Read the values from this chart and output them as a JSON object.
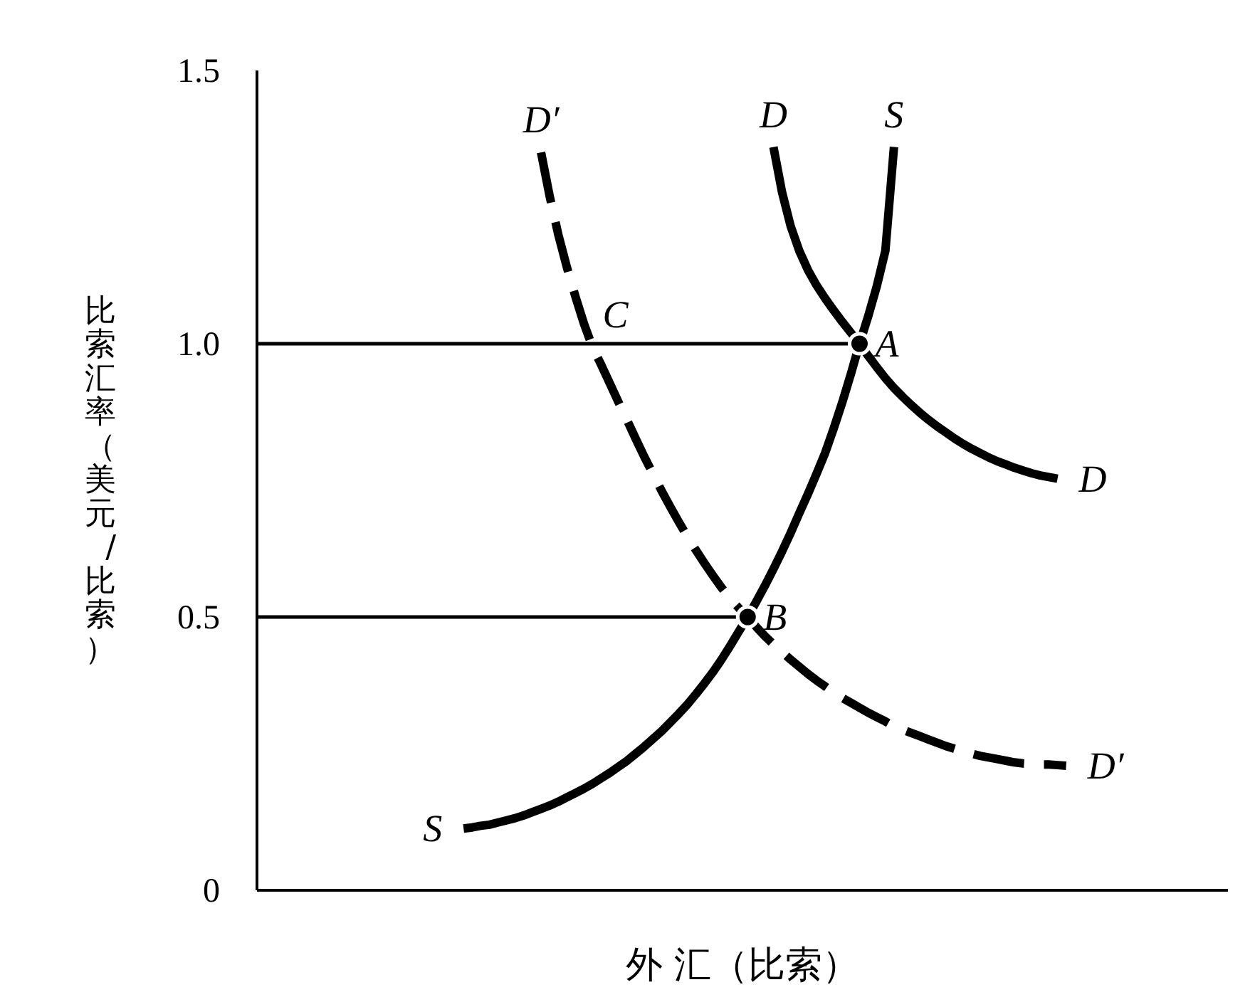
{
  "chart_data": {
    "type": "line",
    "xlabel": "外 汇（比索）",
    "ylabel": "比索汇率（美元/比索）",
    "tick_labels": "y",
    "ylim": [
      0,
      1.5
    ],
    "yticks": [
      0,
      0.5,
      {
        "value": 1,
        "label": "1.0"
      },
      1.5
    ],
    "categories": [
      null,
      null,
      null,
      null,
      null,
      null,
      null,
      null,
      null,
      null,
      null,
      null,
      null,
      null,
      null,
      null,
      null,
      null,
      null,
      null,
      null,
      null,
      null,
      null,
      null,
      null,
      null,
      null,
      null,
      null,
      null,
      null,
      null,
      null,
      null,
      null,
      null,
      null,
      null,
      null,
      null,
      null,
      null,
      null,
      null,
      null,
      null,
      null,
      null,
      null,
      null,
      null,
      null,
      null,
      null,
      null,
      null,
      null,
      null,
      null,
      null,
      null,
      null,
      null,
      null,
      null,
      null,
      null,
      null,
      null,
      null,
      null,
      null,
      null,
      null,
      null,
      null,
      null,
      null,
      null,
      null,
      null,
      null,
      null,
      null,
      null,
      null,
      null,
      null,
      null,
      null,
      null,
      null,
      null,
      null
    ],
    "series": [
      {
        "color": "#000000",
        "values": [
          1,
          1,
          1,
          1,
          1,
          1,
          1,
          1,
          1,
          1,
          1,
          1,
          1,
          1,
          1,
          1,
          1,
          1,
          1,
          1,
          1,
          1,
          1,
          1,
          1,
          1,
          1,
          1,
          1,
          1,
          1,
          1,
          1,
          1,
          1,
          1,
          1,
          1,
          1,
          1,
          1,
          1,
          1,
          1,
          1,
          1,
          1,
          1,
          1,
          1,
          1,
          1,
          1,
          1,
          1,
          1,
          1,
          1,
          1,
          1,
          1,
          1,
          1,
          1,
          1,
          1,
          1,
          1,
          1,
          1,
          1,
          null,
          null,
          null,
          null,
          null,
          null,
          null,
          null,
          null,
          null,
          null,
          null,
          null,
          null,
          null,
          null,
          null,
          null,
          null,
          null,
          null,
          null,
          null,
          null
        ]
      },
      {
        "color": "#000000",
        "values": [
          0.5,
          0.5,
          0.5,
          0.5,
          0.5,
          0.5,
          0.5,
          0.5,
          0.5,
          0.5,
          0.5,
          0.5,
          0.5,
          0.5,
          0.5,
          0.5,
          0.5,
          0.5,
          0.5,
          0.5,
          0.5,
          0.5,
          0.5,
          0.5,
          0.5,
          0.5,
          0.5,
          0.5,
          0.5,
          0.5,
          0.5,
          0.5,
          0.5,
          0.5,
          0.5,
          0.5,
          0.5,
          0.5,
          0.5,
          0.5,
          0.5,
          0.5,
          0.5,
          0.5,
          0.5,
          0.5,
          0.5,
          0.5,
          0.5,
          0.5,
          0.5,
          0.5,
          0.5,
          0.5,
          0.5,
          0.5,
          0.5,
          0.5,
          null,
          null,
          null,
          null,
          null,
          null,
          null,
          null,
          null,
          null,
          null,
          null,
          null,
          null,
          null,
          null,
          null,
          null,
          null,
          null,
          null,
          null,
          null,
          null,
          null,
          null,
          null,
          null,
          null,
          null,
          null,
          null,
          null,
          null,
          null,
          null,
          null
        ]
      },
      {
        "name": "S",
        "color": "#000000",
        "line_style": "solid",
        "values": [
          null,
          null,
          null,
          null,
          null,
          null,
          null,
          null,
          null,
          null,
          null,
          null,
          null,
          null,
          null,
          null,
          null,
          null,
          null,
          null,
          null,
          null,
          null,
          null,
          0.113,
          0.115,
          0.118,
          0.12,
          0.124,
          0.128,
          0.132,
          0.137,
          0.143,
          0.149,
          0.155,
          0.162,
          0.17,
          0.178,
          0.186,
          0.195,
          0.205,
          0.215,
          0.226,
          0.237,
          0.25,
          0.263,
          0.277,
          0.291,
          0.307,
          0.323,
          0.34,
          0.359,
          0.379,
          0.4,
          0.423,
          0.448,
          0.474,
          0.5,
          0.528,
          0.557,
          0.588,
          0.62,
          0.654,
          0.69,
          0.725,
          0.762,
          0.8,
          0.845,
          0.893,
          0.945,
          1,
          1.05,
          1.105,
          1.17,
          1.36,
          null,
          null,
          null,
          null,
          null,
          null,
          null,
          null,
          null,
          null,
          null,
          null,
          null,
          null,
          null,
          null,
          null,
          null,
          null,
          null
        ]
      },
      {
        "name": "D",
        "color": "#000000",
        "line_style": "solid",
        "values": [
          null,
          null,
          null,
          null,
          null,
          null,
          null,
          null,
          null,
          null,
          null,
          null,
          null,
          null,
          null,
          null,
          null,
          null,
          null,
          null,
          null,
          null,
          null,
          null,
          null,
          null,
          null,
          null,
          null,
          null,
          null,
          null,
          null,
          null,
          null,
          null,
          null,
          null,
          null,
          null,
          null,
          null,
          null,
          null,
          null,
          null,
          null,
          null,
          null,
          null,
          null,
          null,
          null,
          null,
          null,
          null,
          null,
          null,
          null,
          null,
          1.36,
          1.277,
          1.215,
          1.17,
          1.135,
          1.107,
          1.083,
          1.061,
          1.04,
          1.02,
          1,
          0.978,
          0.957,
          0.937,
          0.919,
          0.903,
          0.888,
          0.874,
          0.861,
          0.849,
          0.838,
          0.827,
          0.817,
          0.808,
          0.8,
          0.792,
          0.785,
          0.779,
          0.773,
          0.768,
          0.763,
          0.759,
          0.756,
          0.753,
          null
        ]
      },
      {
        "name": "D′",
        "color": "#000000",
        "line_style": "dashed",
        "values": [
          null,
          null,
          null,
          null,
          null,
          null,
          null,
          null,
          null,
          null,
          null,
          null,
          null,
          null,
          null,
          null,
          null,
          null,
          null,
          null,
          null,
          null,
          null,
          null,
          null,
          null,
          null,
          null,
          null,
          null,
          null,
          null,
          null,
          1.35,
          1.27,
          1.2,
          1.14,
          1.086,
          1.036,
          0.993,
          0.961,
          0.927,
          0.893,
          0.86,
          0.826,
          0.793,
          0.762,
          0.731,
          0.702,
          0.674,
          0.647,
          0.622,
          0.598,
          0.575,
          0.553,
          0.533,
          0.516,
          0.5,
          0.482,
          0.465,
          0.45,
          0.436,
          0.422,
          0.409,
          0.396,
          0.384,
          0.373,
          0.362,
          0.352,
          0.343,
          0.334,
          0.325,
          0.317,
          0.309,
          0.3,
          0.294,
          0.288,
          0.282,
          0.276,
          0.27,
          0.264,
          0.259,
          0.254,
          0.25,
          0.246,
          0.243,
          0.24,
          0.237,
          0.234,
          0.232,
          0.231,
          0.23,
          0.23,
          0.229,
          0.228
        ],
        "value_labels": [
          null,
          null,
          null,
          null,
          null,
          null,
          null,
          null,
          null,
          null,
          null,
          null,
          null,
          null,
          null,
          null,
          null,
          null,
          null,
          null,
          null,
          null,
          null,
          null,
          null,
          null,
          null,
          null,
          null,
          null,
          null,
          null,
          null,
          null,
          null,
          null,
          null,
          null,
          null,
          "C",
          null,
          null,
          null,
          null,
          null,
          null,
          null,
          null,
          null,
          null,
          null,
          null,
          null,
          null,
          null,
          null,
          null,
          null,
          null,
          null,
          null,
          null,
          null,
          null,
          null,
          null,
          null,
          null,
          null,
          null,
          null,
          null,
          null,
          null,
          null,
          null,
          null,
          null,
          null,
          null,
          null,
          null,
          null,
          null,
          null,
          null,
          null,
          null,
          null,
          null,
          null,
          null,
          null,
          null,
          null
        ]
      },
      {
        "type": "scatter",
        "marker": "circle",
        "color": "#000000",
        "values": [
          null,
          null,
          null,
          null,
          null,
          null,
          null,
          null,
          null,
          null,
          null,
          null,
          null,
          null,
          null,
          null,
          null,
          null,
          null,
          null,
          null,
          null,
          null,
          null,
          null,
          null,
          null,
          null,
          null,
          null,
          null,
          null,
          null,
          null,
          null,
          null,
          null,
          null,
          null,
          null,
          null,
          null,
          null,
          null,
          null,
          null,
          null,
          null,
          null,
          null,
          null,
          null,
          null,
          null,
          null,
          null,
          null,
          0.5,
          null,
          null,
          null,
          null,
          null,
          null,
          null,
          null,
          null,
          null,
          null,
          null,
          1,
          null,
          null,
          null,
          null,
          null,
          null,
          null,
          null,
          null,
          null,
          null,
          null,
          null,
          null,
          null,
          null,
          null,
          null,
          null,
          null,
          null,
          null,
          null,
          null
        ],
        "value_labels": [
          null,
          null,
          null,
          null,
          null,
          null,
          null,
          null,
          null,
          null,
          null,
          null,
          null,
          null,
          null,
          null,
          null,
          null,
          null,
          null,
          null,
          null,
          null,
          null,
          null,
          null,
          null,
          null,
          null,
          null,
          null,
          null,
          null,
          null,
          null,
          null,
          null,
          null,
          null,
          null,
          null,
          null,
          null,
          null,
          null,
          null,
          null,
          null,
          null,
          null,
          null,
          null,
          null,
          null,
          null,
          null,
          null,
          "B",
          null,
          null,
          null,
          null,
          null,
          null,
          null,
          null,
          null,
          null,
          null,
          null,
          "A",
          null,
          null,
          null,
          null,
          null,
          null,
          null,
          null,
          null,
          null,
          null,
          null,
          null,
          null,
          null,
          null,
          null,
          null,
          null,
          null,
          null,
          null,
          null,
          null
        ]
      }
    ]
  }
}
